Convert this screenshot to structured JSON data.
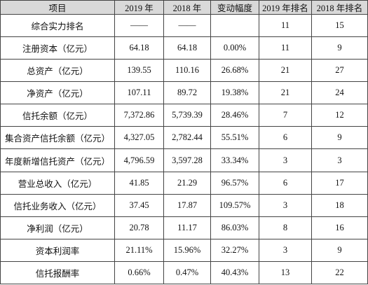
{
  "table": {
    "header": [
      "项目",
      "2019 年",
      "2018 年",
      "变动幅度",
      "2019 年排名",
      "2018 年排名"
    ],
    "rows": [
      [
        "综合实力排名",
        "——",
        "——",
        "",
        "11",
        "15"
      ],
      [
        "注册资本（亿元）",
        "64.18",
        "64.18",
        "0.00%",
        "11",
        "9"
      ],
      [
        "总资产（亿元）",
        "139.55",
        "110.16",
        "26.68%",
        "21",
        "27"
      ],
      [
        "净资产（亿元）",
        "107.11",
        "89.72",
        "19.38%",
        "21",
        "24"
      ],
      [
        "信托余额（亿元）",
        "7,372.86",
        "5,739.39",
        "28.46%",
        "7",
        "12"
      ],
      [
        "集合资产信托余额（亿元）",
        "4,327.05",
        "2,782.44",
        "55.51%",
        "6",
        "9"
      ],
      [
        "年度新增信托资产（亿元）",
        "4,796.59",
        "3,597.28",
        "33.34%",
        "3",
        "3"
      ],
      [
        "营业总收入（亿元）",
        "41.85",
        "21.29",
        "96.57%",
        "6",
        "17"
      ],
      [
        "信托业务收入（亿元）",
        "37.45",
        "17.87",
        "109.57%",
        "3",
        "18"
      ],
      [
        "净利润（亿元）",
        "20.78",
        "11.17",
        "86.03%",
        "8",
        "16"
      ],
      [
        "资本利润率",
        "21.11%",
        "15.96%",
        "32.27%",
        "3",
        "9"
      ],
      [
        "信托报酬率",
        "0.66%",
        "0.47%",
        "40.43%",
        "13",
        "22"
      ]
    ]
  }
}
